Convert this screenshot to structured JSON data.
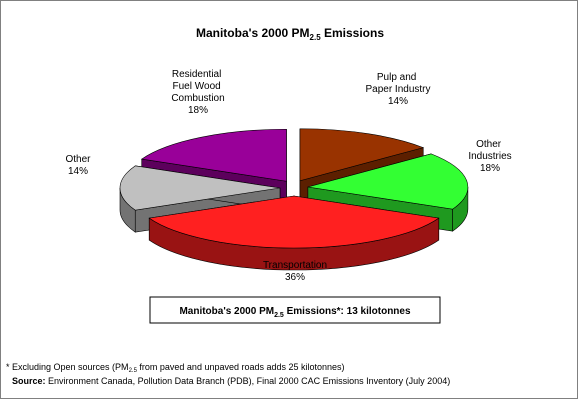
{
  "chart_data": {
    "type": "pie3d",
    "title": [
      "Manitoba's 2000 PM",
      "2.5",
      " Emissions"
    ],
    "categories": [
      "Pulp and Paper Industry",
      "Other Industries",
      "Transportation",
      "Other",
      "Residential Fuel Wood Combustion"
    ],
    "values": [
      14,
      18,
      36,
      14,
      18
    ],
    "value_labels": [
      "14%",
      "18%",
      "36%",
      "14%",
      "18%"
    ],
    "colors": [
      "#993300",
      "#33ff33",
      "#ff2020",
      "#c0c0c0",
      "#990099"
    ],
    "total_box": [
      "Manitoba's 2000 PM",
      "2.5",
      " Emissions*:  13 kilotonnes"
    ],
    "footnote": [
      "*  Excluding Open sources (PM",
      "2.5",
      " from paved and unpaved roads adds 25 kilotonnes)"
    ],
    "source": [
      "Source:",
      "  Environment Canada, Pollution Data Branch (PDB), Final 2000 CAC Emissions Inventory (July 2004)"
    ]
  }
}
